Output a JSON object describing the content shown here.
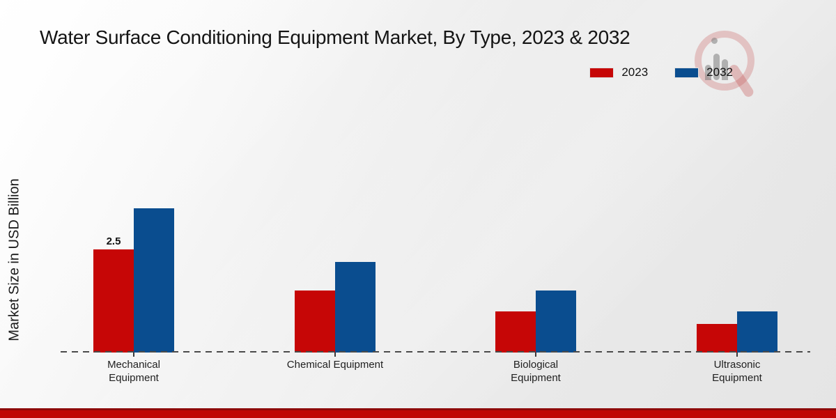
{
  "title": "Water Surface Conditioning Equipment Market, By Type, 2023 & 2032",
  "y_axis_label": "Market Size in USD Billion",
  "legend": {
    "items": [
      {
        "label": "2023",
        "color": "#c60606"
      },
      {
        "label": "2032",
        "color": "#0a4d8f"
      }
    ]
  },
  "chart_data": {
    "type": "bar",
    "title": "Water Surface Conditioning Equipment Market, By Type, 2023 & 2032",
    "xlabel": "",
    "ylabel": "Market Size in USD Billion",
    "categories": [
      "Mechanical Equipment",
      "Chemical Equipment",
      "Biological Equipment",
      "Ultrasonic Equipment"
    ],
    "series": [
      {
        "name": "2023",
        "color": "#c60606",
        "values": [
          2.5,
          1.5,
          1.0,
          0.7
        ]
      },
      {
        "name": "2032",
        "color": "#0a4d8f",
        "values": [
          3.5,
          2.2,
          1.5,
          1.0
        ]
      }
    ],
    "annotations": [
      {
        "series_index": 0,
        "category_index": 0,
        "text": "2.5"
      }
    ],
    "ylim": [
      0,
      3.9
    ],
    "grid": false,
    "legend_position": "upper right",
    "baseline_style": "dashed"
  },
  "watermark": {
    "name": "market-research-future-logo"
  },
  "footer": {
    "color": "#bf0505",
    "edge_color": "#8e0a0a"
  }
}
